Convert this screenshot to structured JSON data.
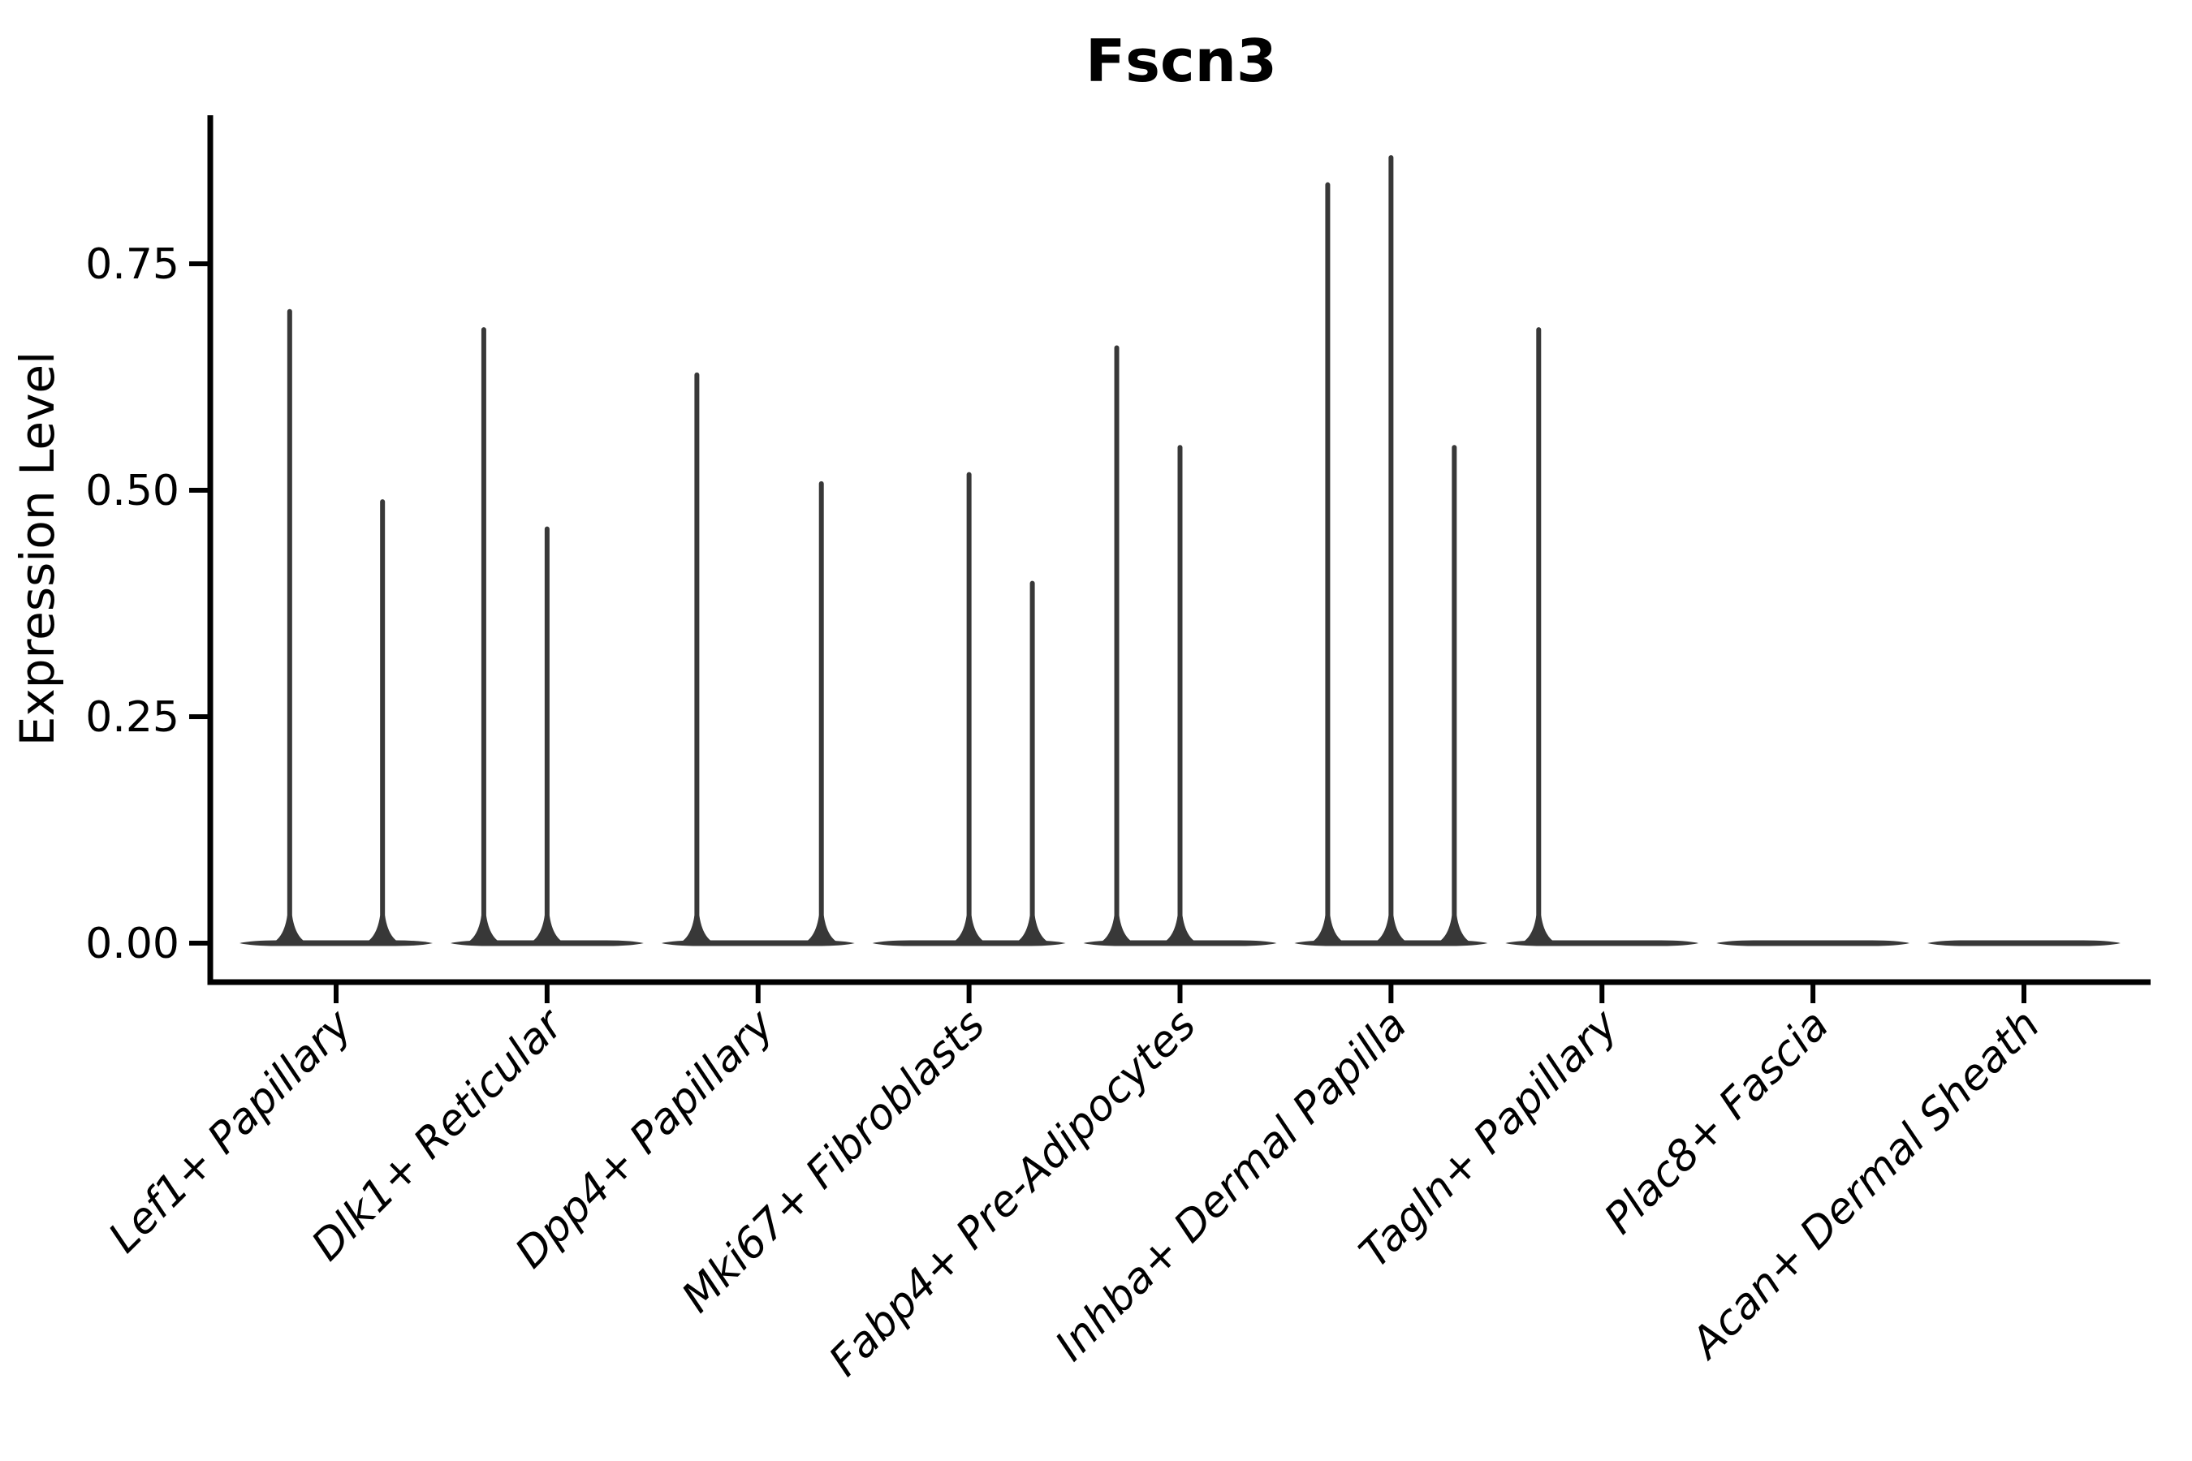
{
  "chart_data": {
    "type": "violin",
    "title": "Fscn3",
    "xlabel": "",
    "ylabel": "Expression Level",
    "ylim": [
      -0.043,
      0.914
    ],
    "ytick_values": [
      0,
      0.25,
      0.5,
      0.75
    ],
    "ytick_labels": [
      "0.00",
      "0.25",
      "0.50",
      "0.75"
    ],
    "grid": "off",
    "legend": "none",
    "x_tick_label_rotation_deg": 45,
    "categories": [
      "Lef1+ Papillary",
      "Dlk1+ Reticular",
      "Dpp4+ Papillary",
      "Mki67+ Fibroblasts",
      "Fabp4+ Pre-Adipocytes",
      "Inhba+ Dermal Papilla",
      "Tagln+ Papillary",
      "Plac8+ Fascia",
      "Acan+ Dermal Sheath"
    ],
    "series": [
      {
        "name": "Lef1+ Papillary",
        "baseline_value": 0,
        "spikes": [
          {
            "offset": -0.22,
            "peak": 0.7
          },
          {
            "offset": 0.22,
            "peak": 0.49
          }
        ]
      },
      {
        "name": "Dlk1+ Reticular",
        "baseline_value": 0,
        "spikes": [
          {
            "offset": -0.3,
            "peak": 0.68
          },
          {
            "offset": 0.0,
            "peak": 0.46
          }
        ]
      },
      {
        "name": "Dpp4+ Papillary",
        "baseline_value": 0,
        "spikes": [
          {
            "offset": -0.29,
            "peak": 0.63
          },
          {
            "offset": 0.3,
            "peak": 0.51
          }
        ]
      },
      {
        "name": "Mki67+ Fibroblasts",
        "baseline_value": 0,
        "spikes": [
          {
            "offset": 0.0,
            "peak": 0.52
          },
          {
            "offset": 0.3,
            "peak": 0.4
          }
        ]
      },
      {
        "name": "Fabp4+ Pre-Adipocytes",
        "baseline_value": 0,
        "spikes": [
          {
            "offset": -0.3,
            "peak": 0.66
          },
          {
            "offset": 0.0,
            "peak": 0.55
          }
        ]
      },
      {
        "name": "Inhba+ Dermal Papilla",
        "baseline_value": 0,
        "spikes": [
          {
            "offset": -0.3,
            "peak": 0.84
          },
          {
            "offset": 0.0,
            "peak": 0.87
          },
          {
            "offset": 0.3,
            "peak": 0.55
          }
        ]
      },
      {
        "name": "Tagln+ Papillary",
        "baseline_value": 0,
        "spikes": [
          {
            "offset": -0.3,
            "peak": 0.68
          }
        ]
      },
      {
        "name": "Plac8+ Fascia",
        "baseline_value": 0,
        "spikes": []
      },
      {
        "name": "Acan+ Dermal Sheath",
        "baseline_value": 0,
        "spikes": []
      }
    ],
    "colors": {
      "violin_stroke": "#383838",
      "axis": "#000000",
      "text": "#000000",
      "background": "#ffffff"
    }
  }
}
